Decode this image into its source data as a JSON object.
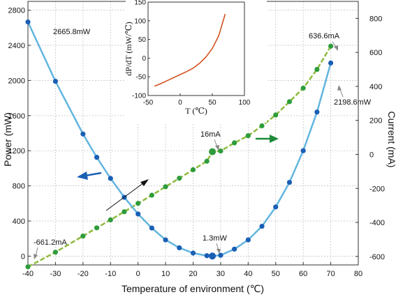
{
  "chart_data": [
    {
      "type": "line",
      "title": "",
      "xlabel": "Temperature of environment (℃)",
      "ylabel": "Power (mW)",
      "y2label": "Current (mA)",
      "xlim": [
        -40,
        80
      ],
      "ylim": [
        -100,
        2900
      ],
      "y2lim": [
        -650,
        900
      ],
      "x_ticks": [
        -40,
        -30,
        -20,
        -10,
        0,
        10,
        20,
        30,
        40,
        50,
        60,
        70,
        80
      ],
      "y_ticks": [
        0,
        400,
        800,
        1200,
        1600,
        2000,
        2400,
        2800
      ],
      "y2_ticks": [
        -600,
        -400,
        -200,
        0,
        200,
        400,
        600,
        800
      ],
      "grid": true,
      "series": [
        {
          "axis": "left",
          "color": "#62b5df",
          "marker_color": "#1a5fb4",
          "x": [
            -40,
            -30,
            -20,
            -15,
            -10,
            -5,
            0,
            5,
            10,
            15,
            20,
            25,
            27,
            30,
            35,
            40,
            45,
            50,
            55,
            60,
            65,
            70
          ],
          "values": [
            2665.8,
            1990,
            1390,
            1125,
            885,
            670,
            480,
            320,
            185,
            95,
            35,
            5,
            1.3,
            10,
            80,
            185,
            340,
            560,
            840,
            1200,
            1640,
            2198.6
          ]
        },
        {
          "axis": "right",
          "color": "#8cbb3c",
          "marker_color": "#2e9c3b",
          "x": [
            -40,
            -30,
            -20,
            -15,
            -10,
            -5,
            0,
            5,
            10,
            15,
            20,
            25,
            27,
            30,
            35,
            40,
            45,
            50,
            55,
            60,
            65,
            70
          ],
          "values": [
            -661.2,
            -575,
            -480,
            -432,
            -385,
            -337,
            -288,
            -240,
            -190,
            -140,
            -90,
            -40,
            16,
            20,
            68,
            110,
            168,
            232,
            310,
            390,
            500,
            636.6
          ]
        }
      ],
      "annotations": [
        {
          "text": "2665.8mW"
        },
        {
          "text": "636.6mA"
        },
        {
          "text": "2198.6mW"
        },
        {
          "text": "16mA"
        },
        {
          "text": "1.3mW"
        },
        {
          "text": "-661.2mA"
        }
      ]
    },
    {
      "type": "line",
      "title": "",
      "xlabel": "T (℃)",
      "ylabel": "dP/dT (mW/℃)",
      "xlim": [
        -50,
        100
      ],
      "ylim": [
        -100,
        150
      ],
      "x_ticks": [
        -50,
        0,
        50,
        100
      ],
      "y_ticks": [
        -100,
        -50,
        0,
        50,
        100,
        150
      ],
      "series": [
        {
          "color": "#d2521f",
          "x": [
            -40,
            -30,
            -20,
            -10,
            0,
            10,
            20,
            30,
            40,
            50,
            60,
            70
          ],
          "values": [
            -75,
            -68,
            -60,
            -52,
            -44,
            -36,
            -27,
            -14,
            3,
            26,
            60,
            118
          ]
        }
      ]
    }
  ]
}
